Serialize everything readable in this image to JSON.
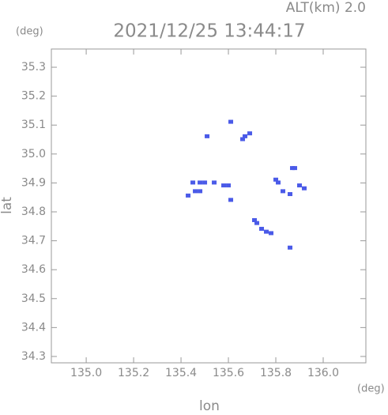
{
  "chart_data": {
    "type": "scatter",
    "title": "2021/12/25 13:44:17",
    "subtitle": "ALT(km)  2.0",
    "y_unit": "(deg)",
    "x_unit": "(deg)",
    "x_label": "lon",
    "y_label": "lat",
    "xlim": [
      134.853,
      136.18
    ],
    "ylim": [
      34.278,
      35.363
    ],
    "xticks": [
      {
        "value": 135.0,
        "label": "135.0"
      },
      135.2,
      135.4,
      135.6,
      135.8,
      {
        "value": 136.0,
        "label": "136.0"
      }
    ],
    "yticks": [
      34.3,
      34.4,
      34.5,
      34.6,
      34.7,
      34.8,
      34.9,
      {
        "value": 35.0,
        "label": "35.0"
      },
      35.1,
      35.2,
      35.3
    ],
    "series": [
      {
        "color": "#4a5ae8",
        "x": [
          135.61,
          135.67,
          135.66,
          135.69,
          135.51,
          135.45,
          135.48,
          135.5,
          135.46,
          135.48,
          135.43,
          135.54,
          135.58,
          135.6,
          135.61,
          135.8,
          135.81,
          135.83,
          135.86,
          135.87,
          135.88,
          135.9,
          135.92,
          135.71,
          135.72,
          135.74,
          135.76,
          135.78,
          135.86
        ],
        "y": [
          35.11,
          35.06,
          35.05,
          35.07,
          35.06,
          34.9,
          34.9,
          34.9,
          34.87,
          34.87,
          34.855,
          34.9,
          34.89,
          34.89,
          34.84,
          34.91,
          34.9,
          34.87,
          34.86,
          34.95,
          34.95,
          34.89,
          34.88,
          34.77,
          34.76,
          34.74,
          34.73,
          34.725,
          34.675
        ]
      }
    ]
  }
}
